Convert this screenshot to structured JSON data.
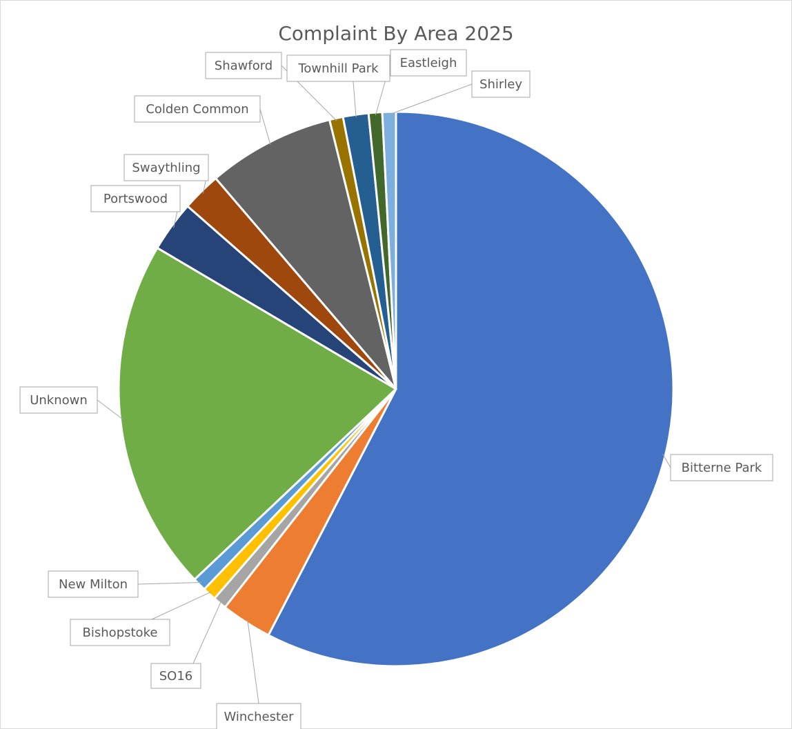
{
  "chart_data": {
    "type": "pie",
    "title": "Complaint By Area 2025",
    "slices": [
      {
        "label": "Bitterne Park",
        "value": 58.3,
        "color": "#4472c4"
      },
      {
        "label": "Winchester",
        "value": 3.0,
        "color": "#ed7d31"
      },
      {
        "label": "SO16",
        "value": 0.8,
        "color": "#a5a5a5"
      },
      {
        "label": "Bishopstoke",
        "value": 0.8,
        "color": "#ffc000"
      },
      {
        "label": "New Milton",
        "value": 0.8,
        "color": "#5b9bd5"
      },
      {
        "label": "Unknown",
        "value": 20.8,
        "color": "#70ad47"
      },
      {
        "label": "Portswood",
        "value": 3.0,
        "color": "#264478"
      },
      {
        "label": "Swaythling",
        "value": 2.3,
        "color": "#9e480e"
      },
      {
        "label": "Colden Common",
        "value": 7.5,
        "color": "#636363"
      },
      {
        "label": "Shawford",
        "value": 0.8,
        "color": "#997300"
      },
      {
        "label": "Townhill Park",
        "value": 1.5,
        "color": "#255e91"
      },
      {
        "label": "Eastleigh",
        "value": 0.8,
        "color": "#43682b"
      },
      {
        "label": "Shirley",
        "value": 0.8,
        "color": "#7cafdd"
      }
    ],
    "legend": "none",
    "data_labels": "category name callouts"
  }
}
